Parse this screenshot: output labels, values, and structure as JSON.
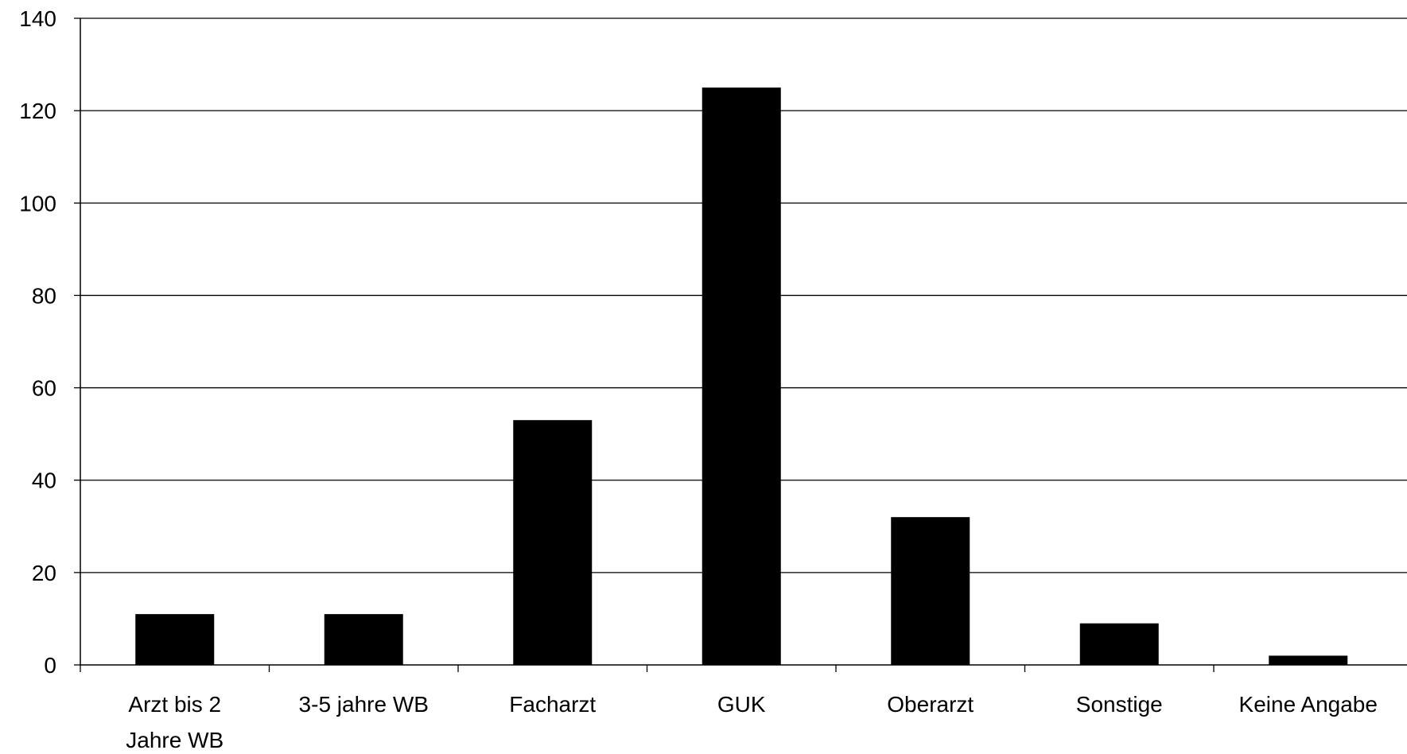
{
  "chart_data": {
    "type": "bar",
    "categories": [
      "Arzt bis 2 Jahre WB",
      "3-5 jahre WB",
      "Facharzt",
      "GUK",
      "Oberarzt",
      "Sonstige",
      "Keine Angabe"
    ],
    "category_label_lines": [
      [
        "Arzt bis 2",
        "Jahre WB"
      ],
      [
        "3-5 jahre WB"
      ],
      [
        "Facharzt"
      ],
      [
        "GUK"
      ],
      [
        "Oberarzt"
      ],
      [
        "Sonstige"
      ],
      [
        "Keine Angabe"
      ]
    ],
    "values": [
      11,
      11,
      53,
      125,
      32,
      9,
      2
    ],
    "yticks": [
      0,
      20,
      40,
      60,
      80,
      100,
      120,
      140
    ],
    "ylim": [
      0,
      140
    ],
    "title": "",
    "xlabel": "",
    "ylabel": "",
    "grid": true,
    "legend": "none",
    "colors": {
      "bar": "#000000",
      "grid": "#000000",
      "axis": "#000000",
      "background": "#ffffff"
    }
  }
}
